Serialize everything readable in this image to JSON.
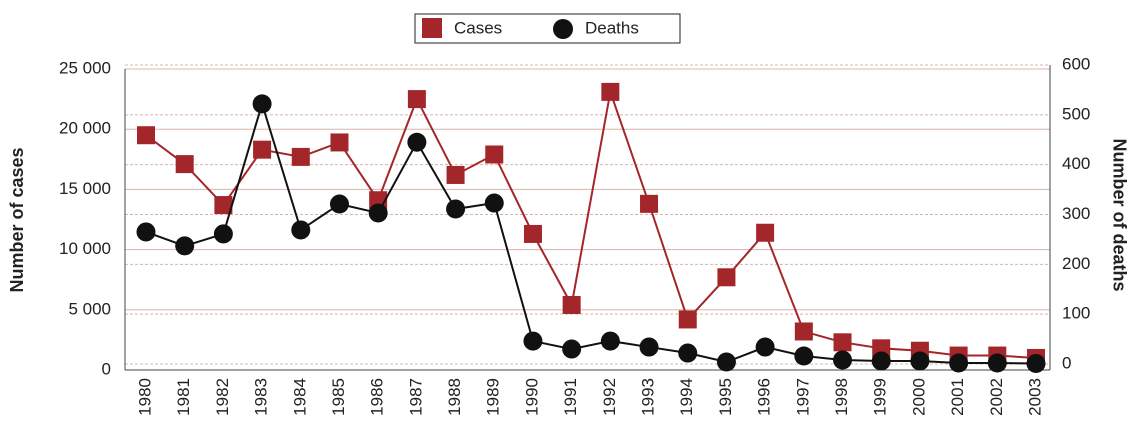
{
  "chart_data": {
    "type": "line",
    "y_label": "Number of cases",
    "y2_label": "Number of deaths",
    "categories": [
      "1980",
      "1981",
      "1982",
      "1983",
      "1984",
      "1985",
      "1986",
      "1987",
      "1988",
      "1989",
      "1990",
      "1991",
      "1992",
      "1993",
      "1994",
      "1995",
      "1996",
      "1997",
      "1998",
      "1999",
      "2000",
      "2001",
      "2002",
      "2003"
    ],
    "series": [
      {
        "name": "Cases",
        "color": "#a3262a",
        "marker": "square",
        "axis": "y",
        "values": [
          19500,
          17100,
          13700,
          18300,
          17700,
          18900,
          14100,
          22500,
          16200,
          17900,
          11300,
          5400,
          23100,
          13800,
          4200,
          7700,
          11400,
          3200,
          2300,
          1800,
          1600,
          1200,
          1200,
          1000
        ]
      },
      {
        "name": "Deaths",
        "color": "#111111",
        "marker": "circle",
        "axis": "y2",
        "values": [
          265,
          237,
          261,
          522,
          269,
          321,
          303,
          445,
          311,
          323,
          46,
          30,
          46,
          34,
          22,
          4,
          34,
          16,
          8,
          6,
          6,
          2,
          2,
          1
        ]
      }
    ],
    "ylim": [
      0,
      25000
    ],
    "yticks": [
      {
        "value": 0,
        "label": "0"
      },
      {
        "value": 5000,
        "label": "5 000"
      },
      {
        "value": 10000,
        "label": "10 000"
      },
      {
        "value": 15000,
        "label": "15 000"
      },
      {
        "value": 20000,
        "label": "20 000"
      },
      {
        "value": 25000,
        "label": "25 000"
      }
    ],
    "y2lim": [
      0,
      600
    ],
    "y2ticks": [
      0,
      100,
      200,
      300,
      400,
      500,
      600
    ],
    "grid": true,
    "legend": "top"
  }
}
